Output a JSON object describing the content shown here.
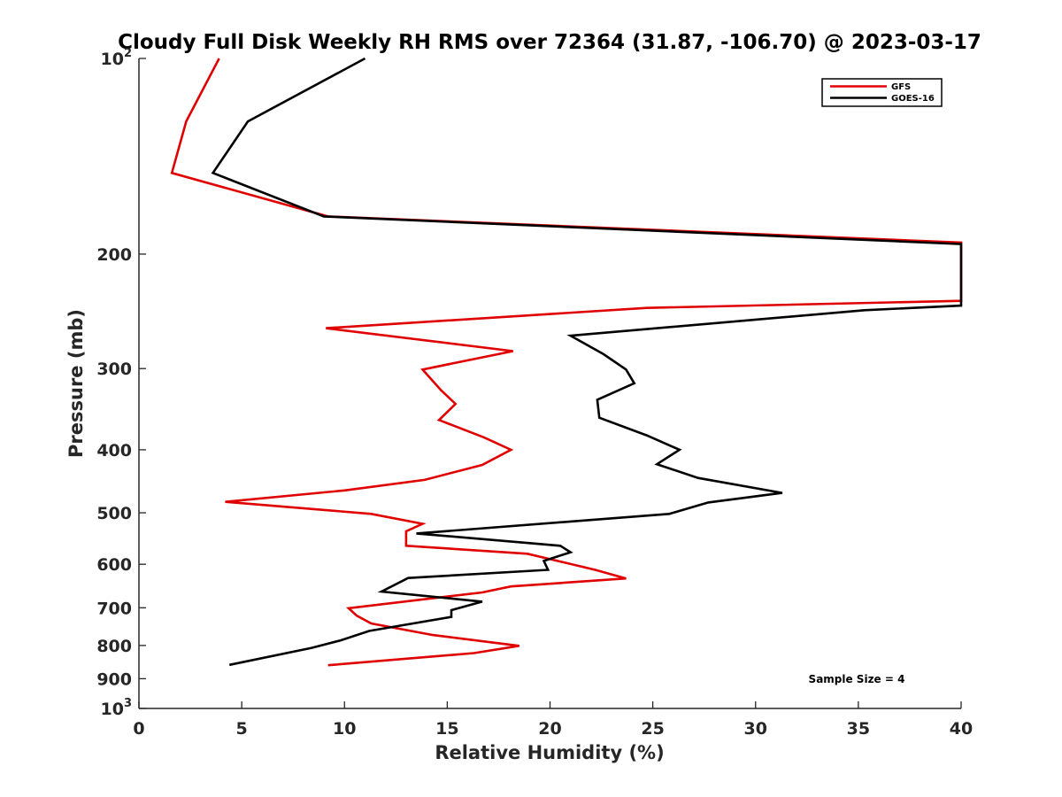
{
  "chart_data": {
    "type": "line",
    "title": "Cloudy Full Disk Weekly RH RMS over 72364 (31.87, -106.70) @ 2023-03-17",
    "xlabel": "Relative Humidity (%)",
    "ylabel": "Pressure (mb)",
    "xlim": [
      0,
      40
    ],
    "ylim": [
      100,
      1000
    ],
    "y_scale": "log",
    "y_reversed": true,
    "grid": false,
    "legend_position": "top-right",
    "x_ticks": [
      0,
      5,
      10,
      15,
      20,
      25,
      30,
      35,
      40
    ],
    "y_ticks": [
      {
        "value": 100,
        "base": "10",
        "exp": "2"
      },
      {
        "value": 200,
        "label": "200"
      },
      {
        "value": 300,
        "label": "300"
      },
      {
        "value": 400,
        "label": "400"
      },
      {
        "value": 500,
        "label": "500"
      },
      {
        "value": 600,
        "label": "600"
      },
      {
        "value": 700,
        "label": "700"
      },
      {
        "value": 800,
        "label": "800"
      },
      {
        "value": 900,
        "label": "900"
      },
      {
        "value": 1000,
        "base": "10",
        "exp": "3"
      }
    ],
    "series": [
      {
        "name": "GFS",
        "color": "#e00000",
        "points": [
          [
            3.9,
            100
          ],
          [
            2.3,
            125
          ],
          [
            1.6,
            150
          ],
          [
            9.2,
            175
          ],
          [
            40.0,
            192
          ],
          [
            40.0,
            236
          ],
          [
            24.7,
            242
          ],
          [
            9.1,
            260
          ],
          [
            18.2,
            282
          ],
          [
            13.8,
            301
          ],
          [
            14.7,
            324
          ],
          [
            15.4,
            340
          ],
          [
            14.6,
            360
          ],
          [
            16.8,
            383
          ],
          [
            18.1,
            400
          ],
          [
            16.7,
            422
          ],
          [
            13.9,
            445
          ],
          [
            10.0,
            462
          ],
          [
            4.2,
            481
          ],
          [
            11.3,
            502
          ],
          [
            13.8,
            520
          ],
          [
            13.0,
            534
          ],
          [
            13.0,
            562
          ],
          [
            18.9,
            578
          ],
          [
            22.2,
            612
          ],
          [
            23.7,
            631
          ],
          [
            18.1,
            649
          ],
          [
            16.7,
            663
          ],
          [
            10.2,
            701
          ],
          [
            10.6,
            720
          ],
          [
            11.3,
            740
          ],
          [
            14.3,
            771
          ],
          [
            18.5,
            801
          ],
          [
            16.3,
            822
          ],
          [
            9.2,
            858
          ]
        ]
      },
      {
        "name": "GOES-16",
        "color": "#000000",
        "points": [
          [
            11.0,
            100
          ],
          [
            5.3,
            125
          ],
          [
            3.6,
            150
          ],
          [
            9.0,
            175
          ],
          [
            40.0,
            193
          ],
          [
            40.0,
            240
          ],
          [
            35.3,
            244
          ],
          [
            21.0,
            267
          ],
          [
            22.6,
            285
          ],
          [
            23.7,
            301
          ],
          [
            24.1,
            316
          ],
          [
            22.3,
            335
          ],
          [
            22.4,
            357
          ],
          [
            24.7,
            380
          ],
          [
            26.3,
            400
          ],
          [
            25.2,
            421
          ],
          [
            27.2,
            442
          ],
          [
            31.3,
            466
          ],
          [
            27.7,
            482
          ],
          [
            25.8,
            502
          ],
          [
            13.5,
            538
          ],
          [
            20.5,
            562
          ],
          [
            21.0,
            575
          ],
          [
            19.7,
            593
          ],
          [
            19.9,
            612
          ],
          [
            13.1,
            630
          ],
          [
            11.8,
            661
          ],
          [
            16.7,
            685
          ],
          [
            15.2,
            706
          ],
          [
            15.2,
            723
          ],
          [
            11.2,
            760
          ],
          [
            9.8,
            786
          ],
          [
            8.4,
            807
          ],
          [
            4.4,
            857
          ]
        ]
      }
    ],
    "annotation": "Sample Size = 4"
  }
}
